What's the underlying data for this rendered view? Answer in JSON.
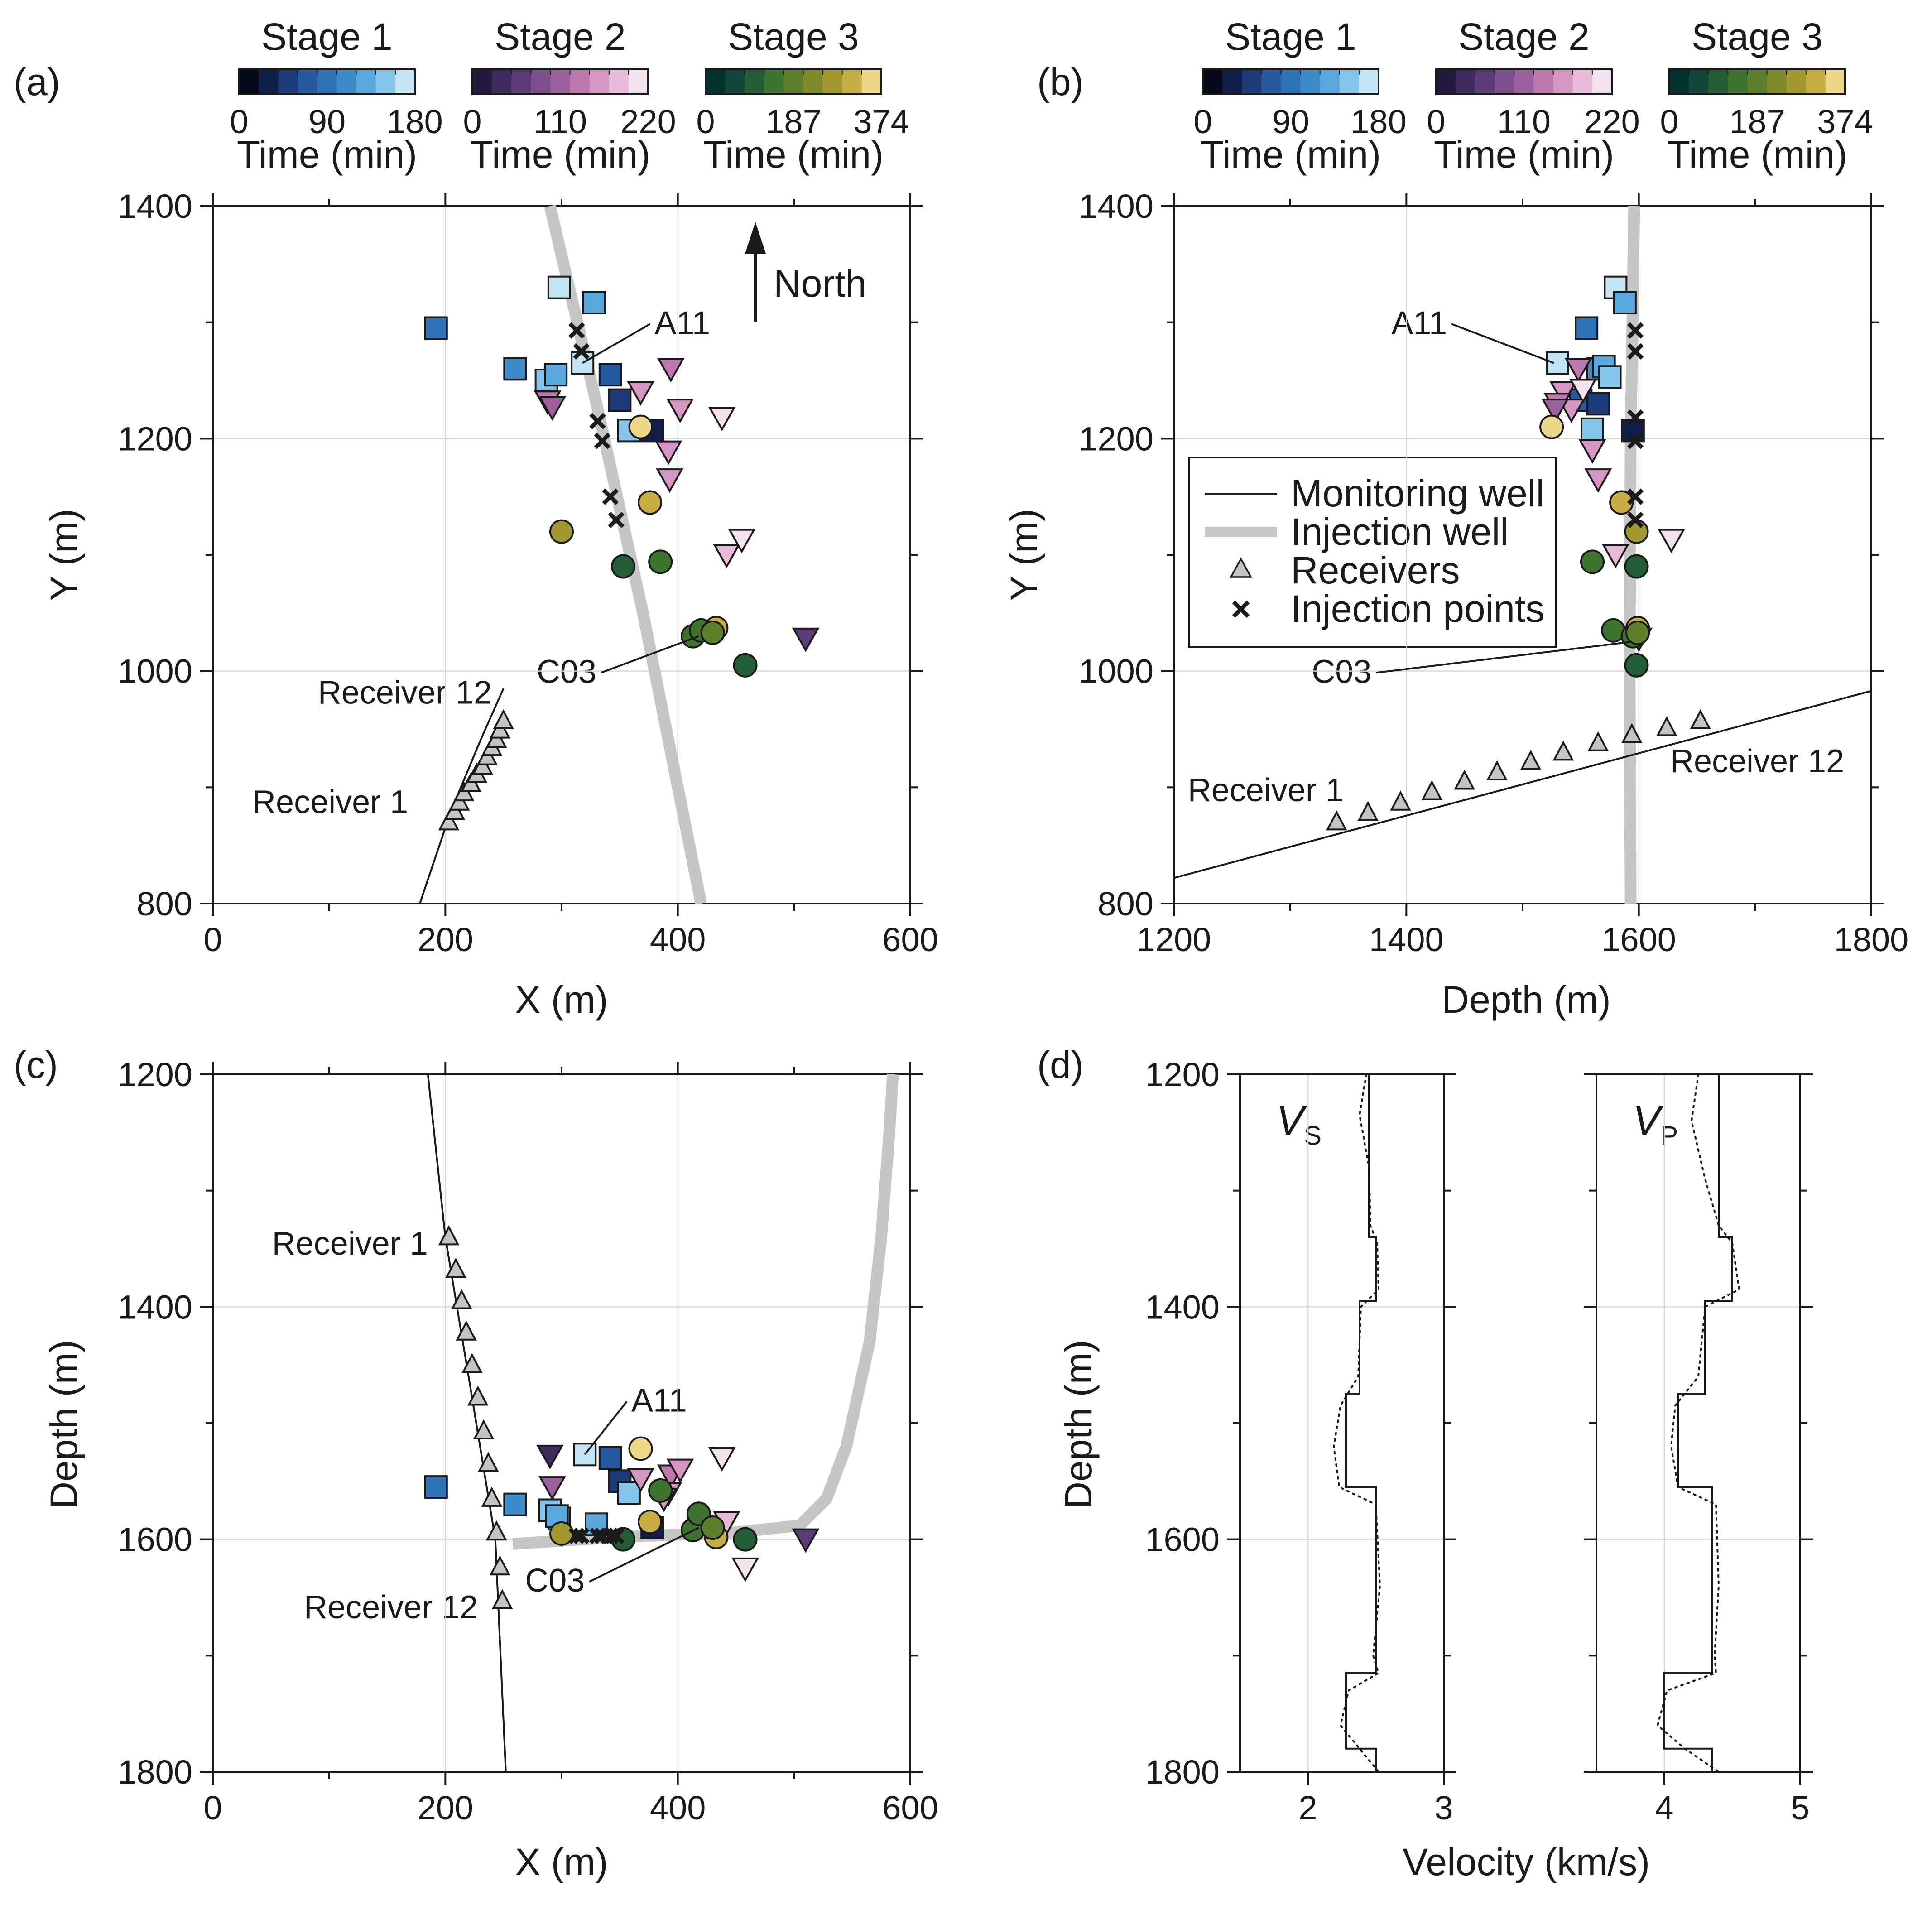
{
  "colormaps": {
    "stage1": [
      "#06091a",
      "#0f1f4a",
      "#1c3a78",
      "#26599f",
      "#2f72b8",
      "#3d8cc9",
      "#59a7dc",
      "#86c5ea",
      "#c4e4f5"
    ],
    "stage2": [
      "#241a40",
      "#3e2c5e",
      "#5b3c78",
      "#7d4f8d",
      "#9c609f",
      "#bd78b0",
      "#d696c4",
      "#e7bad7",
      "#f4e2ee"
    ],
    "stage3": [
      "#07312e",
      "#11473a",
      "#245c36",
      "#3e722f",
      "#5e802e",
      "#7f8a2c",
      "#a19830",
      "#c9ad45",
      "#edd788"
    ]
  },
  "colorbars": [
    {
      "title": "Stage 1",
      "ticks": [
        "0",
        "90",
        "180"
      ],
      "label": "Time (min)"
    },
    {
      "title": "Stage 2",
      "ticks": [
        "0",
        "110",
        "220"
      ],
      "label": "Time (min)"
    },
    {
      "title": "Stage 3",
      "ticks": [
        "0",
        "187",
        "374"
      ],
      "label": "Time (min)"
    }
  ],
  "legend": {
    "monitoring_well": "Monitoring well",
    "injection_well": "Injection well",
    "receivers": "Receivers",
    "injection_points": "Injection points"
  },
  "chart_data": [
    {
      "panel": "(a)",
      "type": "scatter",
      "xlabel": "X (m)",
      "ylabel": "Y (m)",
      "xlim": [
        0,
        600
      ],
      "ylim": [
        800,
        1400
      ],
      "xticks": [
        0,
        200,
        400,
        600
      ],
      "yticks": [
        800,
        1000,
        1200,
        1400
      ],
      "xtick_labels": [
        "0",
        "200",
        "400",
        "600"
      ],
      "ytick_labels": [
        "800",
        "1000",
        "1200",
        "1400"
      ],
      "grid": true,
      "north_label": "North",
      "annotations": [
        {
          "text": "A11",
          "point": [
            318,
            1265
          ],
          "label_at": [
            380,
            1290
          ]
        },
        {
          "text": "C03",
          "point": [
            418,
            1030
          ],
          "label_at": [
            330,
            990
          ]
        }
      ],
      "receiver_labels": [
        {
          "text": "Receiver 12",
          "at": [
            240,
            972
          ],
          "anchor": "end"
        },
        {
          "text": "Receiver 1",
          "at": [
            168,
            878
          ],
          "anchor": "end"
        }
      ],
      "monitoring_well": {
        "x": [
          178,
          205,
          230,
          250
        ],
        "y": [
          800,
          880,
          940,
          985
        ]
      },
      "injection_well": {
        "x": [
          290,
          330,
          370,
          420
        ],
        "y": [
          1400,
          1230,
          1050,
          800
        ]
      },
      "receivers": {
        "x": [
          203,
          208,
          212,
          216,
          222,
          227,
          232,
          236,
          240,
          244,
          247,
          250
        ],
        "y": [
          870,
          879,
          887,
          895,
          903,
          911,
          918,
          926,
          934,
          941,
          949,
          957
        ]
      },
      "injection_points": {
        "x": [
          313,
          317,
          331,
          335,
          342,
          347
        ],
        "y": [
          1293,
          1275,
          1215,
          1198,
          1150,
          1130
        ]
      },
      "stage1": {
        "x": [
          192,
          260,
          298,
          328,
          318,
          287,
          295,
          342,
          350,
          358,
          378
        ],
        "y": [
          1295,
          1260,
          1330,
          1317,
          1265,
          1250,
          1255,
          1255,
          1233,
          1207,
          1207
        ],
        "t": [
          90,
          100,
          170,
          120,
          175,
          150,
          130,
          60,
          40,
          140,
          30
        ]
      },
      "stage2": {
        "x": [
          288,
          292,
          368,
          394,
          402,
          392,
          438,
          393,
          442,
          455,
          510
        ],
        "y": [
          1232,
          1227,
          1240,
          1260,
          1225,
          1189,
          1218,
          1165,
          1100,
          1113,
          1028
        ],
        "t": [
          130,
          120,
          160,
          140,
          170,
          150,
          210,
          160,
          180,
          200,
          60
        ]
      },
      "stage3": {
        "x": [
          300,
          368,
          376,
          353,
          385,
          413,
          420,
          433,
          430,
          458
        ],
        "y": [
          1120,
          1210,
          1145,
          1090,
          1094,
          1030,
          1035,
          1037,
          1033,
          1005
        ],
        "t": [
          290,
          350,
          330,
          100,
          140,
          150,
          160,
          300,
          170,
          120
        ]
      }
    },
    {
      "panel": "(b)",
      "type": "scatter",
      "xlabel": "Depth (m)",
      "ylabel": "Y (m)",
      "xlim": [
        1200,
        1800
      ],
      "ylim": [
        800,
        1400
      ],
      "xticks": [
        1200,
        1400,
        1600,
        1800
      ],
      "yticks": [
        800,
        1000,
        1200,
        1400
      ],
      "xtick_labels": [
        "1200",
        "1400",
        "1600",
        "1800"
      ],
      "ytick_labels": [
        "800",
        "1000",
        "1200",
        "1400"
      ],
      "grid": true,
      "annotations": [
        {
          "text": "A11",
          "point": [
            1527,
            1265
          ],
          "label_at": [
            1435,
            1290
          ]
        },
        {
          "text": "C03",
          "point": [
            1592,
            1025
          ],
          "label_at": [
            1370,
            990
          ]
        }
      ],
      "receiver_labels": [
        {
          "text": "Receiver 1",
          "at": [
            1212,
            888
          ],
          "anchor": "start"
        },
        {
          "text": "Receiver 12",
          "at": [
            1627,
            913
          ],
          "anchor": "start"
        }
      ],
      "monitoring_well": {
        "x": [
          1200,
          1800
        ],
        "y": [
          822,
          983
        ]
      },
      "injection_well": {
        "x": [
          1596,
          1593,
          1592,
          1593
        ],
        "y": [
          1400,
          1200,
          1000,
          800
        ]
      },
      "receivers": {
        "x": [
          1340,
          1367,
          1395,
          1422,
          1450,
          1478,
          1507,
          1535,
          1565,
          1594,
          1624,
          1653
        ],
        "y": [
          870,
          878,
          887,
          896,
          905,
          913,
          922,
          930,
          938,
          945,
          951,
          957
        ]
      },
      "injection_points": {
        "x": [
          1597,
          1597,
          1597,
          1597,
          1597,
          1597
        ],
        "y": [
          1293,
          1275,
          1218,
          1198,
          1150,
          1130
        ]
      },
      "stage1": {
        "x": [
          1555,
          1580,
          1560,
          1565,
          1588,
          1530,
          1570,
          1575,
          1550,
          1565,
          1595
        ],
        "y": [
          1295,
          1330,
          1208,
          1260,
          1317,
          1265,
          1262,
          1253,
          1233,
          1230,
          1207
        ],
        "t": [
          90,
          170,
          140,
          100,
          120,
          175,
          130,
          150,
          60,
          40,
          30
        ]
      },
      "stage2": {
        "x": [
          1548,
          1535,
          1552,
          1542,
          1530,
          1528,
          1560,
          1565,
          1580,
          1628,
          1600
        ],
        "y": [
          1260,
          1240,
          1242,
          1225,
          1230,
          1225,
          1190,
          1165,
          1100,
          1113,
          1028
        ],
        "t": [
          140,
          160,
          210,
          170,
          130,
          120,
          150,
          160,
          180,
          200,
          60
        ]
      },
      "stage3": {
        "x": [
          1525,
          1585,
          1598,
          1560,
          1598,
          1578,
          1595,
          1599,
          1599,
          1598
        ],
        "y": [
          1210,
          1145,
          1120,
          1094,
          1090,
          1035,
          1030,
          1037,
          1033,
          1005
        ],
        "t": [
          350,
          330,
          290,
          140,
          100,
          160,
          150,
          300,
          170,
          120
        ]
      }
    },
    {
      "panel": "(c)",
      "type": "scatter",
      "xlabel": "X (m)",
      "ylabel": "Depth (m)",
      "xlim": [
        0,
        600
      ],
      "ylim": [
        1200,
        1800
      ],
      "y_inverted": true,
      "xticks": [
        0,
        200,
        400,
        600
      ],
      "yticks": [
        1200,
        1400,
        1600,
        1800
      ],
      "xtick_labels": [
        "0",
        "200",
        "400",
        "600"
      ],
      "ytick_labels": [
        "1200",
        "1400",
        "1600",
        "1800"
      ],
      "grid": true,
      "annotations": [
        {
          "text": "A11",
          "point": [
            320,
            1527
          ],
          "label_at": [
            360,
            1490
          ]
        },
        {
          "text": "C03",
          "point": [
            418,
            1590
          ],
          "label_at": [
            320,
            1645
          ]
        }
      ],
      "receiver_labels": [
        {
          "text": "Receiver 1",
          "at": [
            185,
            1355
          ],
          "anchor": "end"
        },
        {
          "text": "Receiver 12",
          "at": [
            228,
            1668
          ],
          "anchor": "end"
        }
      ],
      "monitoring_well": {
        "x": [
          185,
          200,
          220,
          243,
          252
        ],
        "y": [
          1200,
          1340,
          1460,
          1600,
          1800
        ]
      },
      "injection_well": {
        "x": [
          258,
          350,
          450,
          505,
          528,
          545,
          565,
          575,
          582,
          585
        ],
        "y": [
          1604,
          1598,
          1594,
          1588,
          1565,
          1520,
          1430,
          1340,
          1250,
          1200
        ]
      },
      "receivers": {
        "x": [
          203,
          209,
          214,
          218,
          223,
          228,
          233,
          237,
          240,
          244,
          247,
          249
        ],
        "y": [
          1340,
          1368,
          1395,
          1422,
          1450,
          1478,
          1507,
          1535,
          1565,
          1594,
          1624,
          1653
        ]
      },
      "injection_points": {
        "x": [
          313,
          317,
          331,
          335,
          342,
          347
        ],
        "y": [
          1597,
          1597,
          1597,
          1597,
          1597,
          1597
        ]
      },
      "stage1": {
        "x": [
          192,
          260,
          298,
          320,
          342,
          350,
          358,
          330,
          290,
          296,
          378
        ],
        "y": [
          1555,
          1570,
          1582,
          1527,
          1530,
          1550,
          1560,
          1587,
          1575,
          1580,
          1590
        ],
        "t": [
          90,
          100,
          170,
          175,
          60,
          40,
          140,
          120,
          150,
          130,
          30
        ]
      },
      "stage2": {
        "x": [
          290,
          292,
          368,
          394,
          402,
          392,
          438,
          442,
          458,
          510,
          388
        ],
        "y": [
          1528,
          1555,
          1548,
          1545,
          1540,
          1560,
          1530,
          1585,
          1625,
          1600,
          1565
        ],
        "t": [
          40,
          120,
          160,
          140,
          170,
          150,
          210,
          180,
          200,
          60,
          160
        ]
      },
      "stage3": {
        "x": [
          368,
          300,
          376,
          385,
          353,
          413,
          418,
          433,
          430,
          458
        ],
        "y": [
          1522,
          1595,
          1585,
          1558,
          1600,
          1592,
          1578,
          1598,
          1590,
          1600
        ],
        "t": [
          350,
          290,
          330,
          140,
          100,
          150,
          160,
          300,
          170,
          120
        ]
      }
    },
    {
      "panel": "(d)",
      "type": "line",
      "xlabel": "Velocity (km/s)",
      "ylabel": "Depth (m)",
      "ylim": [
        1200,
        1800
      ],
      "y_inverted": true,
      "yticks": [
        1200,
        1400,
        1600,
        1800
      ],
      "ytick_labels": [
        "1200",
        "1400",
        "1600",
        "1800"
      ],
      "vs": {
        "label": "V",
        "sub": "S",
        "xlim": [
          1.5,
          3.0
        ],
        "xticks": [
          2,
          3
        ],
        "xtick_labels": [
          "2",
          "3"
        ],
        "model": {
          "v": [
            2.45,
            2.45,
            2.5,
            2.5,
            2.38,
            2.38,
            2.28,
            2.28,
            2.5,
            2.5,
            2.28,
            2.28,
            2.5,
            2.5
          ],
          "d": [
            1200,
            1340,
            1340,
            1395,
            1395,
            1475,
            1475,
            1555,
            1555,
            1715,
            1715,
            1780,
            1780,
            1800
          ]
        },
        "observed": {
          "v": [
            2.43,
            2.38,
            2.45,
            2.46,
            2.51,
            2.52,
            2.39,
            2.37,
            2.24,
            2.19,
            2.23,
            2.5,
            2.53,
            2.48,
            2.52,
            2.3,
            2.24,
            2.38,
            2.52
          ],
          "d": [
            1200,
            1235,
            1280,
            1330,
            1345,
            1385,
            1400,
            1460,
            1485,
            1520,
            1555,
            1570,
            1640,
            1700,
            1715,
            1730,
            1760,
            1780,
            1800
          ]
        }
      },
      "vp": {
        "label": "V",
        "sub": "P",
        "xlim": [
          3.5,
          5.0
        ],
        "xticks": [
          4,
          5
        ],
        "xtick_labels": [
          "4",
          "5"
        ],
        "model": {
          "v": [
            4.4,
            4.4,
            4.5,
            4.5,
            4.3,
            4.3,
            4.1,
            4.1,
            4.35,
            4.35,
            4.0,
            4.0,
            4.35,
            4.35
          ],
          "d": [
            1200,
            1340,
            1340,
            1395,
            1395,
            1475,
            1475,
            1555,
            1555,
            1715,
            1715,
            1780,
            1780,
            1800
          ]
        },
        "observed": {
          "v": [
            4.25,
            4.2,
            4.3,
            4.4,
            4.5,
            4.55,
            4.3,
            4.25,
            4.08,
            4.05,
            4.1,
            4.38,
            4.4,
            4.37,
            4.38,
            4.02,
            3.95,
            4.15,
            4.4
          ],
          "d": [
            1200,
            1240,
            1290,
            1330,
            1345,
            1385,
            1400,
            1460,
            1485,
            1520,
            1555,
            1570,
            1640,
            1700,
            1715,
            1730,
            1760,
            1780,
            1800
          ]
        }
      }
    }
  ]
}
